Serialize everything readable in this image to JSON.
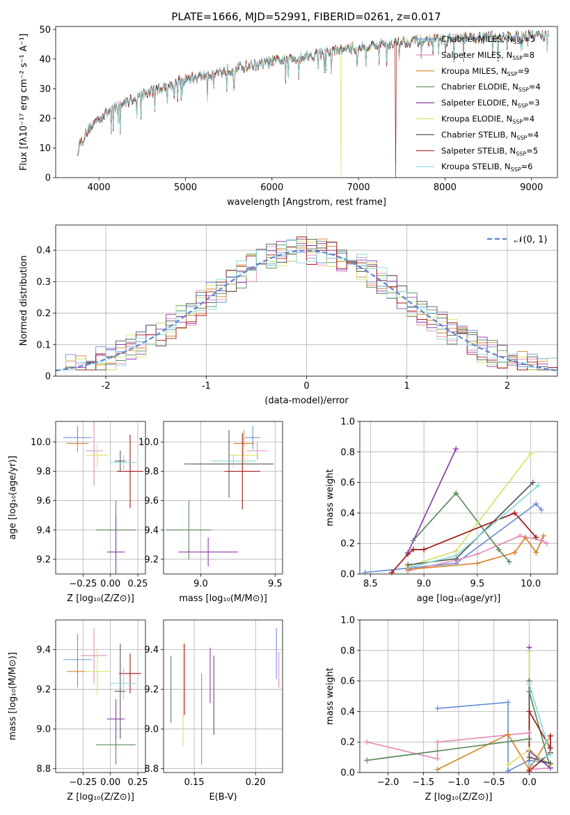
{
  "colors": [
    "#6a8fd8",
    "#e48bb8",
    "#d9822b",
    "#5a8a5a",
    "#8e3bb0",
    "#d4e36a",
    "#555555",
    "#a01818",
    "#88d8d8"
  ],
  "chart_data": [
    {
      "id": "spectrum",
      "type": "line",
      "title": "PLATE=1666, MJD=52991, FIBERID=0261, z=0.017",
      "xlabel": "wavelength [Angstrom, rest frame]",
      "ylabel": "Flux [fλ10⁻¹⁷ erg cm⁻² s⁻¹ A⁻¹]",
      "xlim": [
        3500,
        9300
      ],
      "ylim": [
        0,
        51
      ],
      "xticks": [
        4000,
        5000,
        6000,
        7000,
        8000,
        9000
      ],
      "yticks": [
        0,
        10,
        20,
        30,
        40,
        50
      ],
      "grid": false,
      "legend_position": "upper-right",
      "continuum": [
        [
          3750,
          10
        ],
        [
          3900,
          17
        ],
        [
          4000,
          20
        ],
        [
          4200,
          24
        ],
        [
          4500,
          28
        ],
        [
          4800,
          31
        ],
        [
          5000,
          33
        ],
        [
          5300,
          35
        ],
        [
          5600,
          37
        ],
        [
          6000,
          39
        ],
        [
          6300,
          40.5
        ],
        [
          6600,
          42
        ],
        [
          7000,
          44
        ],
        [
          7300,
          45
        ],
        [
          7600,
          46
        ],
        [
          8000,
          46.5
        ],
        [
          8300,
          47
        ],
        [
          8600,
          47.5
        ],
        [
          9000,
          48
        ],
        [
          9200,
          48
        ]
      ],
      "series": [
        {
          "name": "Chabrier MILES, N",
          "sub": "SSP",
          "suffix": "=5"
        },
        {
          "name": "Salpeter MILES, N",
          "sub": "SSP",
          "suffix": "=8"
        },
        {
          "name": "Kroupa MILES, N",
          "sub": "SSP",
          "suffix": "=9"
        },
        {
          "name": "Chabrier ELODIE, N",
          "sub": "SSP",
          "suffix": "=4"
        },
        {
          "name": "Salpeter ELODIE, N",
          "sub": "SSP",
          "suffix": "=3"
        },
        {
          "name": "Kroupa ELODIE, N",
          "sub": "SSP",
          "suffix": "=4"
        },
        {
          "name": "Chabrier STELIB, N",
          "sub": "SSP",
          "suffix": "=4"
        },
        {
          "name": "Salpeter STELIB, N",
          "sub": "SSP",
          "suffix": "=5"
        },
        {
          "name": "Kroupa STELIB, N",
          "sub": "SSP",
          "suffix": "=6"
        }
      ]
    },
    {
      "id": "residuals",
      "type": "histogram",
      "xlabel": "(data-model)/error",
      "ylabel": "Normed distribution",
      "xlim": [
        -2.5,
        2.5
      ],
      "ylim": [
        0,
        0.48
      ],
      "xticks": [
        -2,
        -1,
        0,
        1,
        2
      ],
      "yticks": [
        0.0,
        0.1,
        0.2,
        0.3,
        0.4
      ],
      "grid": true,
      "bin_width": 0.1,
      "gaussian_label": "𝒩(0, 1)",
      "legend_position": "upper-right"
    },
    {
      "id": "age_vs_Z",
      "type": "errorbar",
      "xlabel": "Z [log₁₀(Z/Z⊙)]",
      "ylabel": "age  [log₁₀(age/yr)]",
      "xlim": [
        -0.5,
        0.32
      ],
      "ylim": [
        9.1,
        10.14
      ],
      "xticks": [
        -0.25,
        0.0,
        0.25
      ],
      "xticklabels": [
        "−0.25",
        "0.00",
        "0.25"
      ],
      "yticks": [
        9.2,
        9.4,
        9.6,
        9.8,
        10.0
      ],
      "yticklabels": [
        "9.2",
        "9.4",
        "9.6",
        "9.8",
        "10.0"
      ],
      "grid": true,
      "points": [
        {
          "x": -0.3,
          "xerr": 0.13,
          "y": 10.03,
          "yerr": 0.08
        },
        {
          "x": -0.15,
          "xerr": 0.08,
          "y": 9.94,
          "yerr": 0.24
        },
        {
          "x": -0.3,
          "xerr": 0.1,
          "y": 9.99,
          "yerr": 0.06
        },
        {
          "x": 0.05,
          "xerr": 0.18,
          "y": 9.4,
          "yerr": 0.2
        },
        {
          "x": 0.05,
          "xerr": 0.08,
          "y": 9.25,
          "yerr": 0.25
        },
        {
          "x": -0.12,
          "xerr": 0.1,
          "y": 9.91,
          "yerr": 0.08
        },
        {
          "x": 0.09,
          "xerr": 0.05,
          "y": 9.87,
          "yerr": 0.07
        },
        {
          "x": 0.18,
          "xerr": 0.12,
          "y": 9.8,
          "yerr": 0.25
        },
        {
          "x": 0.12,
          "xerr": 0.12,
          "y": 9.86,
          "yerr": 0.05
        }
      ]
    },
    {
      "id": "age_vs_mass",
      "type": "errorbar",
      "xlabel": "mass [log₁₀(M/M⊙)]",
      "ylabel": "",
      "xlim": [
        8.75,
        9.55
      ],
      "ylim": [
        9.1,
        10.14
      ],
      "xticks": [
        9.0,
        9.5
      ],
      "xticklabels": [
        "9.0",
        "9.5"
      ],
      "yticks": [
        9.2,
        9.4,
        9.6,
        9.8,
        10.0
      ],
      "yticklabels": [
        "9.2",
        "9.4",
        "9.6",
        "9.8",
        "10.0"
      ],
      "grid": true,
      "points": [
        {
          "x": 9.35,
          "xerr": 0.05,
          "y": 10.03,
          "yerr": 0.08
        },
        {
          "x": 9.38,
          "xerr": 0.07,
          "y": 9.94,
          "yerr": 0.06
        },
        {
          "x": 9.29,
          "xerr": 0.07,
          "y": 9.99,
          "yerr": 0.09
        },
        {
          "x": 8.92,
          "xerr": 0.15,
          "y": 9.4,
          "yerr": 0.2
        },
        {
          "x": 9.05,
          "xerr": 0.2,
          "y": 9.25,
          "yerr": 0.1
        },
        {
          "x": 9.29,
          "xerr": 0.1,
          "y": 9.91,
          "yerr": 0.06
        },
        {
          "x": 9.19,
          "xerr": 0.3,
          "y": 9.85,
          "yerr": 0.23
        },
        {
          "x": 9.28,
          "xerr": 0.12,
          "y": 9.8,
          "yerr": 0.26
        },
        {
          "x": 9.22,
          "xerr": 0.15,
          "y": 9.87,
          "yerr": 0.04
        }
      ]
    },
    {
      "id": "weight_vs_age",
      "type": "line",
      "xlabel": "age  [log₁₀(age/yr)]",
      "ylabel": "mass weight",
      "xlim": [
        8.4,
        10.25
      ],
      "ylim": [
        0,
        1.0
      ],
      "xticks": [
        8.5,
        9.0,
        9.5,
        10.0
      ],
      "xticklabels": [
        "8.5",
        "9.0",
        "9.5",
        "10.0"
      ],
      "yticks": [
        0,
        0.2,
        0.4,
        0.6,
        0.8,
        1.0
      ],
      "yticklabels": [
        "0.0",
        "0.2",
        "0.4",
        "0.6",
        "0.8",
        "1.0"
      ],
      "grid": true,
      "series": [
        {
          "points": [
            [
              8.45,
              0.01
            ],
            [
              9.3,
              0.07
            ],
            [
              10.05,
              0.46
            ],
            [
              10.1,
              0.42
            ]
          ]
        },
        {
          "points": [
            [
              8.85,
              0.02
            ],
            [
              9.3,
              0.09
            ],
            [
              9.5,
              0.13
            ],
            [
              9.9,
              0.25
            ],
            [
              10.1,
              0.22
            ],
            [
              10.15,
              0.2
            ]
          ]
        },
        {
          "points": [
            [
              8.85,
              0.03
            ],
            [
              9.5,
              0.07
            ],
            [
              9.85,
              0.14
            ],
            [
              9.95,
              0.24
            ],
            [
              10.05,
              0.14
            ],
            [
              10.12,
              0.25
            ]
          ]
        },
        {
          "points": [
            [
              8.9,
              0.22
            ],
            [
              9.3,
              0.53
            ],
            [
              9.7,
              0.16
            ],
            [
              9.8,
              0.08
            ]
          ]
        },
        {
          "points": [
            [
              8.85,
              0.14
            ],
            [
              9.3,
              0.82
            ]
          ]
        },
        {
          "points": [
            [
              8.85,
              0.05
            ],
            [
              9.3,
              0.15
            ],
            [
              10.0,
              0.79
            ]
          ]
        },
        {
          "points": [
            [
              8.85,
              0.06
            ],
            [
              9.3,
              0.1
            ],
            [
              10.02,
              0.6
            ]
          ]
        },
        {
          "points": [
            [
              8.7,
              0.01
            ],
            [
              8.85,
              0.13
            ],
            [
              8.9,
              0.16
            ],
            [
              9.0,
              0.16
            ],
            [
              9.85,
              0.4
            ],
            [
              10.05,
              0.24
            ]
          ]
        },
        {
          "points": [
            [
              8.9,
              0.05
            ],
            [
              9.3,
              0.12
            ],
            [
              10.07,
              0.58
            ]
          ]
        }
      ]
    },
    {
      "id": "mass_vs_Z",
      "type": "errorbar",
      "xlabel": "Z [log₁₀(Z/Z⊙)]",
      "ylabel": "mass [log₁₀(M/M⊙)]",
      "xlim": [
        -0.5,
        0.32
      ],
      "ylim": [
        8.78,
        9.55
      ],
      "xticks": [
        -0.25,
        0.0,
        0.25
      ],
      "xticklabels": [
        "−0.25",
        "0.00",
        "0.25"
      ],
      "yticks": [
        8.8,
        9.0,
        9.2,
        9.4
      ],
      "yticklabels": [
        "8.8",
        "9.0",
        "9.2",
        "9.4"
      ],
      "grid": true,
      "points": [
        {
          "x": -0.3,
          "xerr": 0.13,
          "y": 9.35,
          "yerr": 0.13
        },
        {
          "x": -0.15,
          "xerr": 0.12,
          "y": 9.37,
          "yerr": 0.14
        },
        {
          "x": -0.3,
          "xerr": 0.1,
          "y": 9.29,
          "yerr": 0.08
        },
        {
          "x": 0.05,
          "xerr": 0.18,
          "y": 8.92,
          "yerr": 0.1
        },
        {
          "x": 0.05,
          "xerr": 0.08,
          "y": 9.05,
          "yerr": 0.1
        },
        {
          "x": -0.12,
          "xerr": 0.12,
          "y": 9.29,
          "yerr": 0.12
        },
        {
          "x": 0.09,
          "xerr": 0.05,
          "y": 9.19,
          "yerr": 0.24
        },
        {
          "x": 0.18,
          "xerr": 0.1,
          "y": 9.28,
          "yerr": 0.1
        },
        {
          "x": 0.12,
          "xerr": 0.12,
          "y": 9.23,
          "yerr": 0.08
        }
      ]
    },
    {
      "id": "mass_vs_ebv",
      "type": "errorbar",
      "xlabel": "E(B-V)",
      "ylabel": "",
      "xlim": [
        0.125,
        0.222
      ],
      "ylim": [
        8.78,
        9.55
      ],
      "xticks": [
        0.15,
        0.2
      ],
      "xticklabels": [
        "0.15",
        "0.20"
      ],
      "yticks": [
        8.8,
        9.0,
        9.2,
        9.4
      ],
      "yticklabels": [
        "8.8",
        "9.0",
        "9.2",
        "9.4"
      ],
      "grid": true,
      "points": [
        {
          "x": 0.217,
          "xerr": 0,
          "y": 9.38,
          "yerr": 0.13
        },
        {
          "x": 0.219,
          "xerr": 0,
          "y": 9.3,
          "yerr": 0.09
        },
        {
          "x": 0.156,
          "xerr": 0,
          "y": 9.05,
          "yerr": 0.23
        },
        {
          "x": 0.131,
          "xerr": 0,
          "y": 9.2,
          "yerr": 0.17
        },
        {
          "x": 0.163,
          "xerr": 0,
          "y": 9.27,
          "yerr": 0.14
        },
        {
          "x": 0.141,
          "xerr": 0,
          "y": 9.17,
          "yerr": 0.26
        },
        {
          "x": 0.166,
          "xerr": 0,
          "y": 9.17,
          "yerr": 0.2
        },
        {
          "x": 0.142,
          "xerr": 0,
          "y": 9.25,
          "yerr": 0.18
        }
      ]
    },
    {
      "id": "weight_vs_Z",
      "type": "line",
      "xlabel": "Z [log₁₀(Z/Z⊙)]",
      "ylabel": "mass weight",
      "xlim": [
        -2.4,
        0.4
      ],
      "ylim": [
        0,
        1.0
      ],
      "xticks": [
        -2.0,
        -1.5,
        -1.0,
        -0.5,
        0.0
      ],
      "xticklabels": [
        "−2.0",
        "−1.5",
        "−1.0",
        "−0.5",
        "0.0"
      ],
      "yticks": [
        0,
        0.2,
        0.4,
        0.6,
        0.8,
        1.0
      ],
      "yticklabels": [
        "0.0",
        "0.2",
        "0.4",
        "0.6",
        "0.8",
        "1.0"
      ],
      "grid": true,
      "series": [
        {
          "points": [
            [
              -1.3,
              0.42
            ],
            [
              -0.3,
              0.46
            ],
            [
              -0.3,
              0.01
            ],
            [
              0.0,
              0.08
            ],
            [
              0.3,
              0.06
            ]
          ]
        },
        {
          "points": [
            [
              -2.3,
              0.2
            ],
            [
              -1.3,
              0.09
            ],
            [
              -1.3,
              0.2
            ],
            [
              0.0,
              0.26
            ],
            [
              0.0,
              0.02
            ],
            [
              0.3,
              0.03
            ]
          ]
        },
        {
          "points": [
            [
              -1.3,
              0.02
            ],
            [
              -0.3,
              0.25
            ],
            [
              0.0,
              0.02
            ],
            [
              0.3,
              0.24
            ]
          ]
        },
        {
          "points": [
            [
              -2.3,
              0.08
            ],
            [
              0.0,
              0.22
            ],
            [
              0.0,
              0.53
            ],
            [
              0.3,
              0.03
            ]
          ]
        },
        {
          "points": [
            [
              0.0,
              0.82
            ],
            [
              0.0,
              0.14
            ],
            [
              0.3,
              0.03
            ]
          ]
        },
        {
          "points": [
            [
              0.0,
              0.79
            ],
            [
              0.0,
              0.15
            ],
            [
              -0.3,
              0.05
            ],
            [
              0.0,
              0.15
            ],
            [
              0.3,
              0.05
            ]
          ]
        },
        {
          "points": [
            [
              0.0,
              0.6
            ],
            [
              0.0,
              0.1
            ],
            [
              0.3,
              0.06
            ]
          ]
        },
        {
          "points": [
            [
              0.3,
              0.24
            ],
            [
              0.3,
              0.16
            ],
            [
              0.0,
              0.4
            ],
            [
              0.0,
              0.01
            ],
            [
              0.3,
              0.13
            ]
          ]
        },
        {
          "points": [
            [
              0.0,
              0.58
            ],
            [
              0.3,
              0.12
            ],
            [
              0.0,
              0.05
            ]
          ]
        }
      ]
    }
  ]
}
